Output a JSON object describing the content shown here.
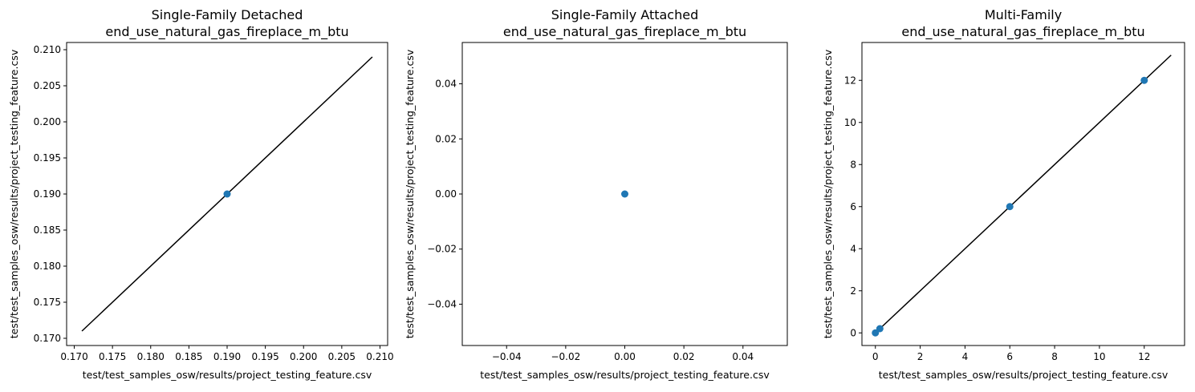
{
  "chart_data": [
    {
      "type": "scatter",
      "title_line1": "Single-Family Detached",
      "title_line2": "end_use_natural_gas_fireplace_m_btu",
      "xlabel": "test/test_samples_osw/results/project_testing_feature.csv",
      "ylabel": "test/test_samples_osw/results/project_testing_feature.csv",
      "xlim": [
        0.169,
        0.211
      ],
      "ylim": [
        0.169,
        0.211
      ],
      "xticks": [
        "0.170",
        "0.175",
        "0.180",
        "0.185",
        "0.190",
        "0.195",
        "0.200",
        "0.205",
        "0.210"
      ],
      "yticks": [
        "0.170",
        "0.175",
        "0.180",
        "0.185",
        "0.190",
        "0.195",
        "0.200",
        "0.205",
        "0.210"
      ],
      "points": [
        {
          "x": 0.19,
          "y": 0.19
        }
      ],
      "reference_line": {
        "x": [
          0.171,
          0.209
        ],
        "y": [
          0.171,
          0.209
        ]
      }
    },
    {
      "type": "scatter",
      "title_line1": "Single-Family Attached",
      "title_line2": "end_use_natural_gas_fireplace_m_btu",
      "xlabel": "test/test_samples_osw/results/project_testing_feature.csv",
      "ylabel": "test/test_samples_osw/results/project_testing_feature.csv",
      "xlim": [
        -0.055,
        0.055
      ],
      "ylim": [
        -0.055,
        0.055
      ],
      "xticks": [
        "−0.04",
        "−0.02",
        "0.00",
        "0.02",
        "0.04"
      ],
      "yticks": [
        "−0.04",
        "−0.02",
        "0.00",
        "0.02",
        "0.04"
      ],
      "points": [
        {
          "x": 0,
          "y": 0
        }
      ],
      "reference_line": null
    },
    {
      "type": "scatter",
      "title_line1": "Multi-Family",
      "title_line2": "end_use_natural_gas_fireplace_m_btu",
      "xlabel": "test/test_samples_osw/results/project_testing_feature.csv",
      "ylabel": "test/test_samples_osw/results/project_testing_feature.csv",
      "xlim": [
        -0.6,
        13.8
      ],
      "ylim": [
        -0.6,
        13.8
      ],
      "xticks": [
        "0",
        "2",
        "4",
        "6",
        "8",
        "10",
        "12"
      ],
      "yticks": [
        "0",
        "2",
        "4",
        "6",
        "8",
        "10",
        "12"
      ],
      "points": [
        {
          "x": 0,
          "y": 0
        },
        {
          "x": 0.2,
          "y": 0.2
        },
        {
          "x": 6,
          "y": 6
        },
        {
          "x": 12,
          "y": 12
        }
      ],
      "reference_line": {
        "x": [
          0,
          13.2
        ],
        "y": [
          0,
          13.2
        ]
      }
    }
  ],
  "colors": {
    "marker": "#1f77b4",
    "line": "#000000"
  }
}
